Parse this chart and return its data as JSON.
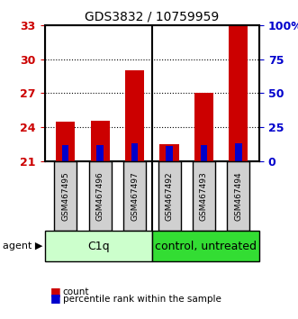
{
  "title": "GDS3832 / 10759959",
  "samples": [
    "GSM467495",
    "GSM467496",
    "GSM467497",
    "GSM467492",
    "GSM467493",
    "GSM467494"
  ],
  "red_values": [
    24.5,
    24.6,
    29.0,
    22.5,
    27.0,
    33.0
  ],
  "blue_values": [
    22.4,
    22.4,
    22.6,
    22.3,
    22.4,
    22.6
  ],
  "ymin": 21,
  "ymax": 33,
  "yticks_left": [
    21,
    24,
    27,
    30,
    33
  ],
  "yticks_right_labels": [
    "0",
    "25",
    "50",
    "75",
    "100%"
  ],
  "yticks_right_values": [
    21,
    24,
    27,
    30,
    33
  ],
  "group1_label": "C1q",
  "group2_label": "control, untreated",
  "group1_indices": [
    0,
    1,
    2
  ],
  "group2_indices": [
    3,
    4,
    5
  ],
  "agent_label": "agent",
  "legend_count": "count",
  "legend_percentile": "percentile rank within the sample",
  "bar_width": 0.55,
  "red_color": "#cc0000",
  "blue_color": "#0000cc",
  "group1_color": "#ccffcc",
  "group2_color": "#33dd33",
  "title_color": "#000000",
  "left_tick_color": "#cc0000",
  "right_tick_color": "#0000cc",
  "bar_bottom": 21
}
